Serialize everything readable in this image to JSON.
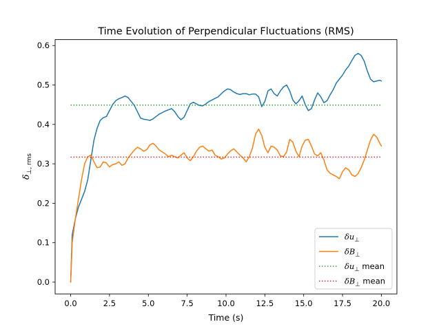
{
  "chart_data": {
    "type": "line",
    "title": "Time Evolution of Perpendicular Fluctuations (RMS)",
    "xlabel": "Time (s)",
    "ylabel": "δ⊥, rms",
    "xlim": [
      -1.0,
      21.0
    ],
    "ylim": [
      -0.03,
      0.615
    ],
    "xticks": [
      0.0,
      2.5,
      5.0,
      7.5,
      10.0,
      12.5,
      15.0,
      17.5,
      20.0
    ],
    "xtick_labels": [
      "0.0",
      "2.5",
      "5.0",
      "7.5",
      "10.0",
      "12.5",
      "15.0",
      "17.5",
      "20.0"
    ],
    "yticks": [
      0.0,
      0.1,
      0.2,
      0.3,
      0.4,
      0.5,
      0.6
    ],
    "ytick_labels": [
      "0.0",
      "0.1",
      "0.2",
      "0.3",
      "0.4",
      "0.5",
      "0.6"
    ],
    "grid": false,
    "legend_position": "lower-right",
    "series": [
      {
        "name": "δu⊥",
        "color": "#1f77b4",
        "style": "solid",
        "x": [
          0.0,
          0.1,
          0.3,
          0.5,
          0.7,
          0.9,
          1.1,
          1.3,
          1.5,
          1.7,
          1.9,
          2.1,
          2.3,
          2.5,
          2.7,
          2.9,
          3.1,
          3.3,
          3.5,
          3.7,
          3.9,
          4.1,
          4.3,
          4.5,
          4.7,
          4.9,
          5.1,
          5.3,
          5.5,
          5.7,
          5.9,
          6.1,
          6.3,
          6.5,
          6.7,
          6.9,
          7.1,
          7.3,
          7.5,
          7.7,
          7.9,
          8.1,
          8.3,
          8.5,
          8.7,
          8.9,
          9.1,
          9.3,
          9.5,
          9.7,
          9.9,
          10.1,
          10.3,
          10.5,
          10.7,
          10.9,
          11.1,
          11.3,
          11.5,
          11.7,
          11.9,
          12.1,
          12.3,
          12.5,
          12.7,
          12.9,
          13.1,
          13.3,
          13.5,
          13.7,
          13.9,
          14.1,
          14.3,
          14.5,
          14.7,
          14.9,
          15.1,
          15.3,
          15.5,
          15.7,
          15.9,
          16.1,
          16.3,
          16.5,
          16.7,
          16.9,
          17.1,
          17.3,
          17.5,
          17.7,
          17.9,
          18.1,
          18.3,
          18.5,
          18.7,
          18.9,
          19.1,
          19.3,
          19.5,
          19.7,
          19.9,
          20.0
        ],
        "y": [
          0.0,
          0.12,
          0.16,
          0.19,
          0.21,
          0.23,
          0.26,
          0.31,
          0.36,
          0.39,
          0.41,
          0.417,
          0.42,
          0.435,
          0.45,
          0.46,
          0.465,
          0.468,
          0.472,
          0.468,
          0.458,
          0.448,
          0.432,
          0.416,
          0.413,
          0.412,
          0.41,
          0.414,
          0.42,
          0.426,
          0.43,
          0.434,
          0.437,
          0.44,
          0.432,
          0.42,
          0.412,
          0.418,
          0.435,
          0.452,
          0.456,
          0.452,
          0.448,
          0.447,
          0.452,
          0.458,
          0.462,
          0.466,
          0.47,
          0.478,
          0.485,
          0.49,
          0.488,
          0.482,
          0.478,
          0.476,
          0.478,
          0.478,
          0.475,
          0.477,
          0.477,
          0.47,
          0.445,
          0.458,
          0.485,
          0.49,
          0.478,
          0.472,
          0.485,
          0.495,
          0.5,
          0.485,
          0.462,
          0.452,
          0.46,
          0.472,
          0.45,
          0.435,
          0.44,
          0.462,
          0.48,
          0.47,
          0.455,
          0.46,
          0.475,
          0.488,
          0.505,
          0.515,
          0.525,
          0.538,
          0.548,
          0.562,
          0.575,
          0.58,
          0.575,
          0.56,
          0.535,
          0.515,
          0.508,
          0.51,
          0.512,
          0.51
        ]
      },
      {
        "name": "δB⊥",
        "color": "#ff7f0e",
        "style": "solid",
        "x": [
          0.0,
          0.1,
          0.3,
          0.5,
          0.7,
          0.9,
          1.1,
          1.3,
          1.5,
          1.7,
          1.9,
          2.1,
          2.3,
          2.5,
          2.7,
          2.9,
          3.1,
          3.3,
          3.5,
          3.7,
          3.9,
          4.1,
          4.3,
          4.5,
          4.7,
          4.9,
          5.1,
          5.3,
          5.5,
          5.7,
          5.9,
          6.1,
          6.3,
          6.5,
          6.7,
          6.9,
          7.1,
          7.3,
          7.5,
          7.7,
          7.9,
          8.1,
          8.3,
          8.5,
          8.7,
          8.9,
          9.1,
          9.3,
          9.5,
          9.7,
          9.9,
          10.1,
          10.3,
          10.5,
          10.7,
          10.9,
          11.1,
          11.3,
          11.5,
          11.7,
          11.9,
          12.1,
          12.3,
          12.5,
          12.7,
          12.9,
          13.1,
          13.3,
          13.5,
          13.7,
          13.9,
          14.1,
          14.3,
          14.5,
          14.7,
          14.9,
          15.1,
          15.3,
          15.5,
          15.7,
          15.9,
          16.1,
          16.3,
          16.5,
          16.7,
          16.9,
          17.1,
          17.3,
          17.5,
          17.7,
          17.9,
          18.1,
          18.3,
          18.5,
          18.7,
          18.9,
          19.1,
          19.3,
          19.5,
          19.7,
          19.9,
          20.0
        ],
        "y": [
          0.0,
          0.1,
          0.16,
          0.21,
          0.26,
          0.3,
          0.318,
          0.322,
          0.305,
          0.29,
          0.292,
          0.305,
          0.302,
          0.292,
          0.298,
          0.3,
          0.305,
          0.296,
          0.3,
          0.315,
          0.325,
          0.335,
          0.342,
          0.338,
          0.332,
          0.336,
          0.348,
          0.352,
          0.345,
          0.335,
          0.33,
          0.325,
          0.318,
          0.322,
          0.318,
          0.315,
          0.322,
          0.328,
          0.315,
          0.308,
          0.318,
          0.332,
          0.342,
          0.345,
          0.338,
          0.332,
          0.335,
          0.322,
          0.318,
          0.312,
          0.315,
          0.325,
          0.333,
          0.338,
          0.33,
          0.322,
          0.315,
          0.305,
          0.318,
          0.34,
          0.375,
          0.388,
          0.372,
          0.342,
          0.328,
          0.345,
          0.342,
          0.335,
          0.32,
          0.318,
          0.33,
          0.362,
          0.355,
          0.332,
          0.318,
          0.345,
          0.36,
          0.362,
          0.345,
          0.325,
          0.32,
          0.328,
          0.31,
          0.285,
          0.276,
          0.272,
          0.268,
          0.262,
          0.28,
          0.29,
          0.285,
          0.272,
          0.268,
          0.275,
          0.29,
          0.31,
          0.335,
          0.36,
          0.375,
          0.368,
          0.352,
          0.345
        ]
      },
      {
        "name": "δu⊥ mean",
        "color": "#2ca02c",
        "style": "dotted",
        "x": [
          0.0,
          20.0
        ],
        "y": [
          0.449,
          0.449
        ]
      },
      {
        "name": "δB⊥ mean",
        "color": "#d62728",
        "style": "dotted",
        "x": [
          0.0,
          20.0
        ],
        "y": [
          0.317,
          0.317
        ]
      }
    ]
  },
  "legend": {
    "items": [
      {
        "sym": "δu",
        "sub": "⊥",
        "suffix": ""
      },
      {
        "sym": "δB",
        "sub": "⊥",
        "suffix": ""
      },
      {
        "sym": "δu",
        "sub": "⊥",
        "suffix": " mean"
      },
      {
        "sym": "δB",
        "sub": "⊥",
        "suffix": " mean"
      }
    ]
  },
  "ylabel_parts": {
    "sym": "δ",
    "sub": "⊥, rms"
  }
}
